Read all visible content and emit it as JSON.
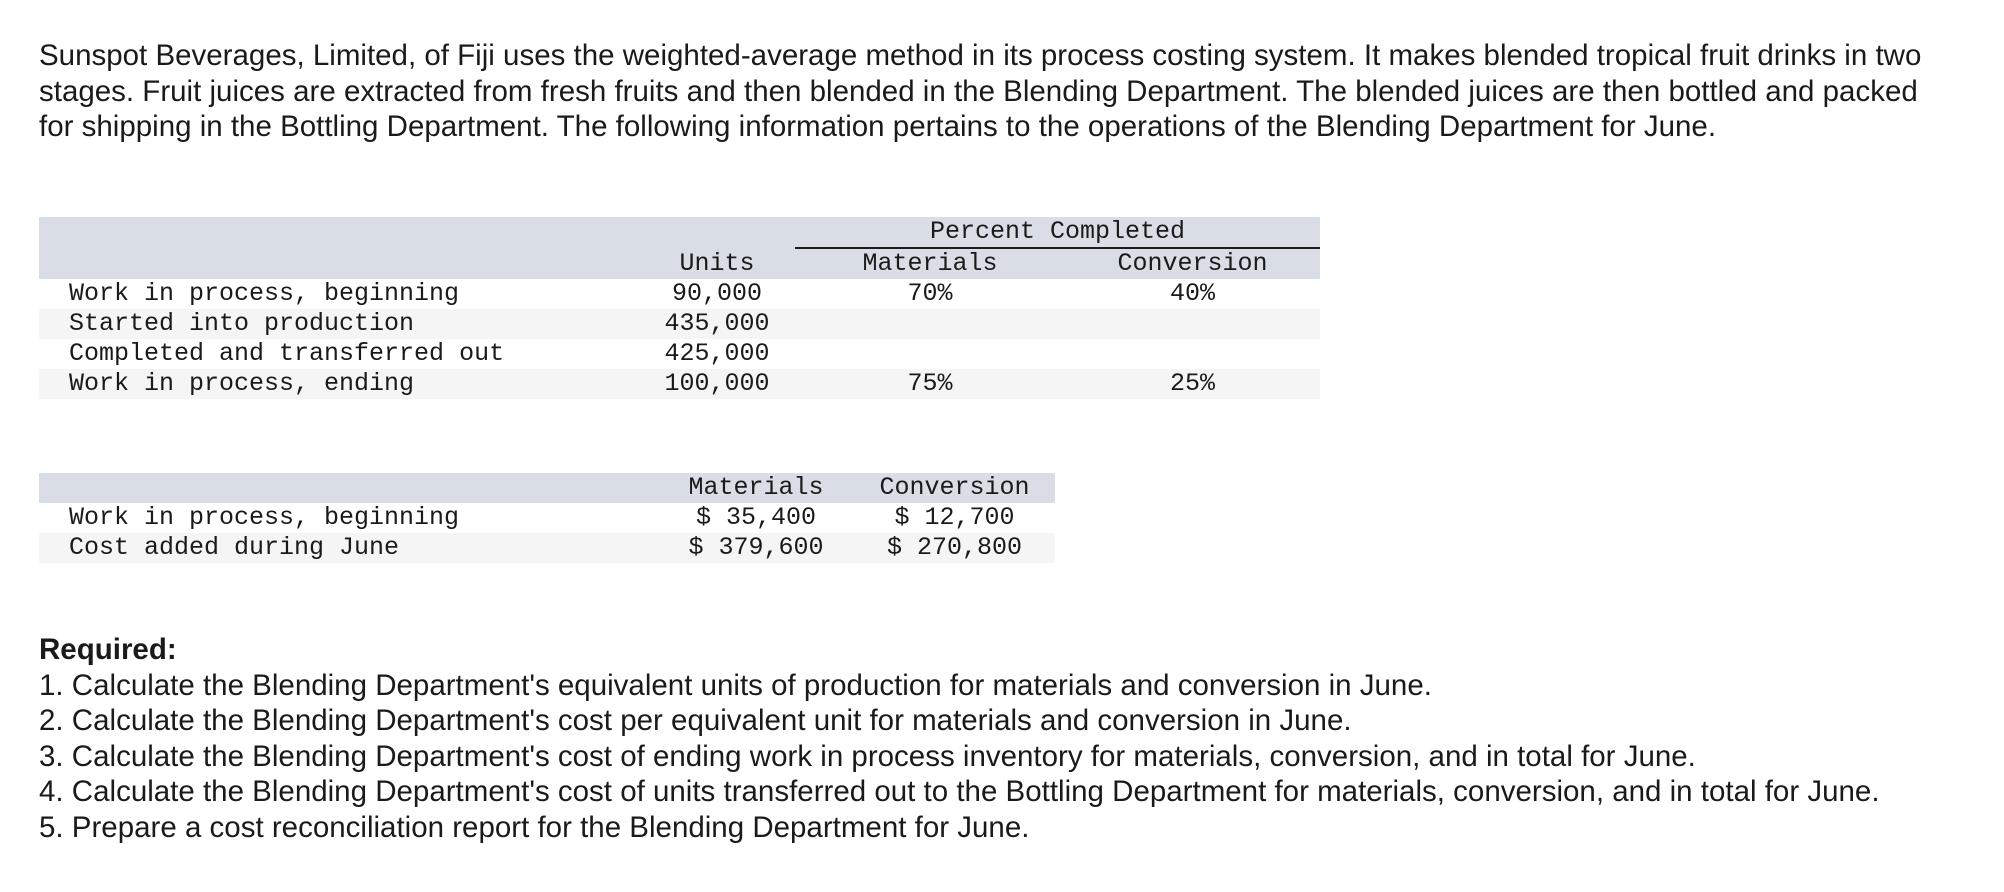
{
  "intro": "Sunspot Beverages, Limited, of Fiji uses the weighted-average method in its process costing system. It makes blended tropical fruit drinks in two stages. Fruit juices are extracted from fresh fruits and then blended in the Blending Department. The blended juices are then bottled and packed for shipping in the Bottling Department. The following information pertains to the operations of the Blending Department for June.",
  "units_table": {
    "group_header": "Percent Completed",
    "headers": [
      "Units",
      "Materials",
      "Conversion"
    ],
    "rows": [
      {
        "label": "Work in process, beginning",
        "units": "90,000",
        "materials": "70%",
        "conversion": "40%"
      },
      {
        "label": "Started into production",
        "units": "435,000",
        "materials": "",
        "conversion": ""
      },
      {
        "label": "Completed and transferred out",
        "units": "425,000",
        "materials": "",
        "conversion": ""
      },
      {
        "label": "Work in process, ending",
        "units": "100,000",
        "materials": "75%",
        "conversion": "25%"
      }
    ]
  },
  "cost_table": {
    "headers": [
      "Materials",
      "Conversion"
    ],
    "rows": [
      {
        "label": "Work in process, beginning",
        "materials": "$ 35,400",
        "conversion": "$ 12,700"
      },
      {
        "label": "Cost added during June",
        "materials": "$ 379,600",
        "conversion": "$ 270,800"
      }
    ]
  },
  "required": {
    "title": "Required:",
    "items": [
      "1. Calculate the Blending Department's equivalent units of production for materials and conversion in June.",
      "2. Calculate the Blending Department's cost per equivalent unit for materials and conversion in June.",
      "3. Calculate the Blending Department's cost of ending work in process inventory for materials, conversion, and in total for June.",
      "4. Calculate the Blending Department's cost of units transferred out to the Bottling Department for materials, conversion, and in total for June.",
      "5. Prepare a cost reconciliation report for the Blending Department for June."
    ]
  }
}
